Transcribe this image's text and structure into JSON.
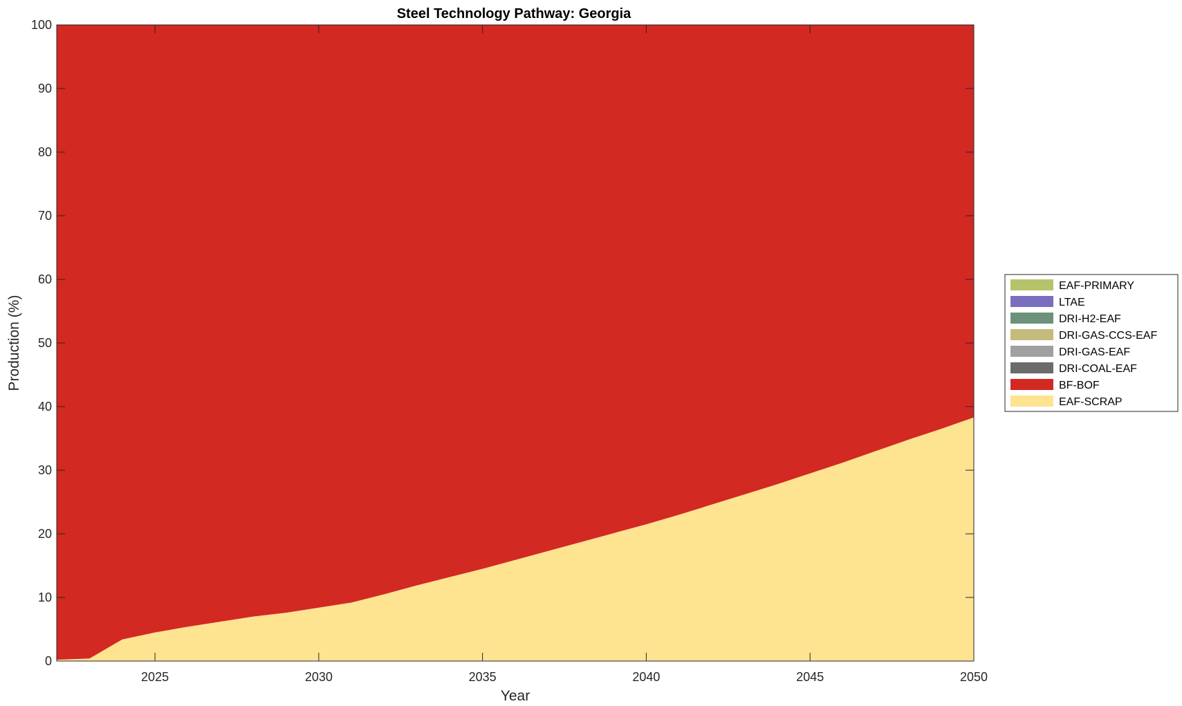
{
  "chart_data": {
    "type": "area",
    "stacked": true,
    "title": "Steel Technology Pathway: Georgia",
    "xlabel": "Year",
    "ylabel": "Production (%)",
    "xlim": [
      2022,
      2050
    ],
    "ylim": [
      0,
      100
    ],
    "xticks": [
      2025,
      2030,
      2035,
      2040,
      2045,
      2050
    ],
    "yticks": [
      0,
      10,
      20,
      30,
      40,
      50,
      60,
      70,
      80,
      90,
      100
    ],
    "grid": false,
    "legend_position": "right",
    "x": [
      2022,
      2023,
      2024,
      2025,
      2026,
      2027,
      2028,
      2029,
      2030,
      2031,
      2032,
      2033,
      2034,
      2035,
      2036,
      2037,
      2038,
      2039,
      2040,
      2041,
      2042,
      2043,
      2044,
      2045,
      2046,
      2047,
      2048,
      2049,
      2050
    ],
    "series": [
      {
        "name": "EAF-SCRAP",
        "color": "#fee391",
        "values": [
          0.2,
          0.4,
          3.4,
          4.5,
          5.4,
          6.2,
          7.0,
          7.6,
          8.4,
          9.2,
          10.5,
          11.9,
          13.2,
          14.5,
          15.9,
          17.3,
          18.7,
          20.1,
          21.5,
          23.0,
          24.6,
          26.2,
          27.8,
          29.5,
          31.2,
          33.0,
          34.8,
          36.5,
          38.3
        ]
      },
      {
        "name": "BF-BOF",
        "color": "#d22922",
        "values": [
          99.8,
          99.6,
          96.6,
          95.5,
          94.6,
          93.8,
          93.0,
          92.4,
          91.6,
          90.8,
          89.5,
          88.1,
          86.8,
          85.5,
          84.1,
          82.7,
          81.3,
          79.9,
          78.5,
          77.0,
          75.4,
          73.8,
          72.2,
          70.5,
          68.8,
          67.0,
          65.2,
          63.5,
          61.7
        ]
      },
      {
        "name": "DRI-COAL-EAF",
        "color": "#6b6b6b",
        "values": [
          0,
          0,
          0,
          0,
          0,
          0,
          0,
          0,
          0,
          0,
          0,
          0,
          0,
          0,
          0,
          0,
          0,
          0,
          0,
          0,
          0,
          0,
          0,
          0,
          0,
          0,
          0,
          0,
          0
        ]
      },
      {
        "name": "DRI-GAS-EAF",
        "color": "#a0a0a0",
        "values": [
          0,
          0,
          0,
          0,
          0,
          0,
          0,
          0,
          0,
          0,
          0,
          0,
          0,
          0,
          0,
          0,
          0,
          0,
          0,
          0,
          0,
          0,
          0,
          0,
          0,
          0,
          0,
          0,
          0
        ]
      },
      {
        "name": "DRI-GAS-CCS-EAF",
        "color": "#c4bb7c",
        "values": [
          0,
          0,
          0,
          0,
          0,
          0,
          0,
          0,
          0,
          0,
          0,
          0,
          0,
          0,
          0,
          0,
          0,
          0,
          0,
          0,
          0,
          0,
          0,
          0,
          0,
          0,
          0,
          0,
          0
        ]
      },
      {
        "name": "DRI-H2-EAF",
        "color": "#6d927a",
        "values": [
          0,
          0,
          0,
          0,
          0,
          0,
          0,
          0,
          0,
          0,
          0,
          0,
          0,
          0,
          0,
          0,
          0,
          0,
          0,
          0,
          0,
          0,
          0,
          0,
          0,
          0,
          0,
          0,
          0
        ]
      },
      {
        "name": "LTAE",
        "color": "#7a6ebf",
        "values": [
          0,
          0,
          0,
          0,
          0,
          0,
          0,
          0,
          0,
          0,
          0,
          0,
          0,
          0,
          0,
          0,
          0,
          0,
          0,
          0,
          0,
          0,
          0,
          0,
          0,
          0,
          0,
          0,
          0
        ]
      },
      {
        "name": "EAF-PRIMARY",
        "color": "#b7c36a",
        "values": [
          0,
          0,
          0,
          0,
          0,
          0,
          0,
          0,
          0,
          0,
          0,
          0,
          0,
          0,
          0,
          0,
          0,
          0,
          0,
          0,
          0,
          0,
          0,
          0,
          0,
          0,
          0,
          0,
          0
        ]
      }
    ],
    "legend_order": [
      "EAF-PRIMARY",
      "LTAE",
      "DRI-H2-EAF",
      "DRI-GAS-CCS-EAF",
      "DRI-GAS-EAF",
      "DRI-COAL-EAF",
      "BF-BOF",
      "EAF-SCRAP"
    ]
  }
}
